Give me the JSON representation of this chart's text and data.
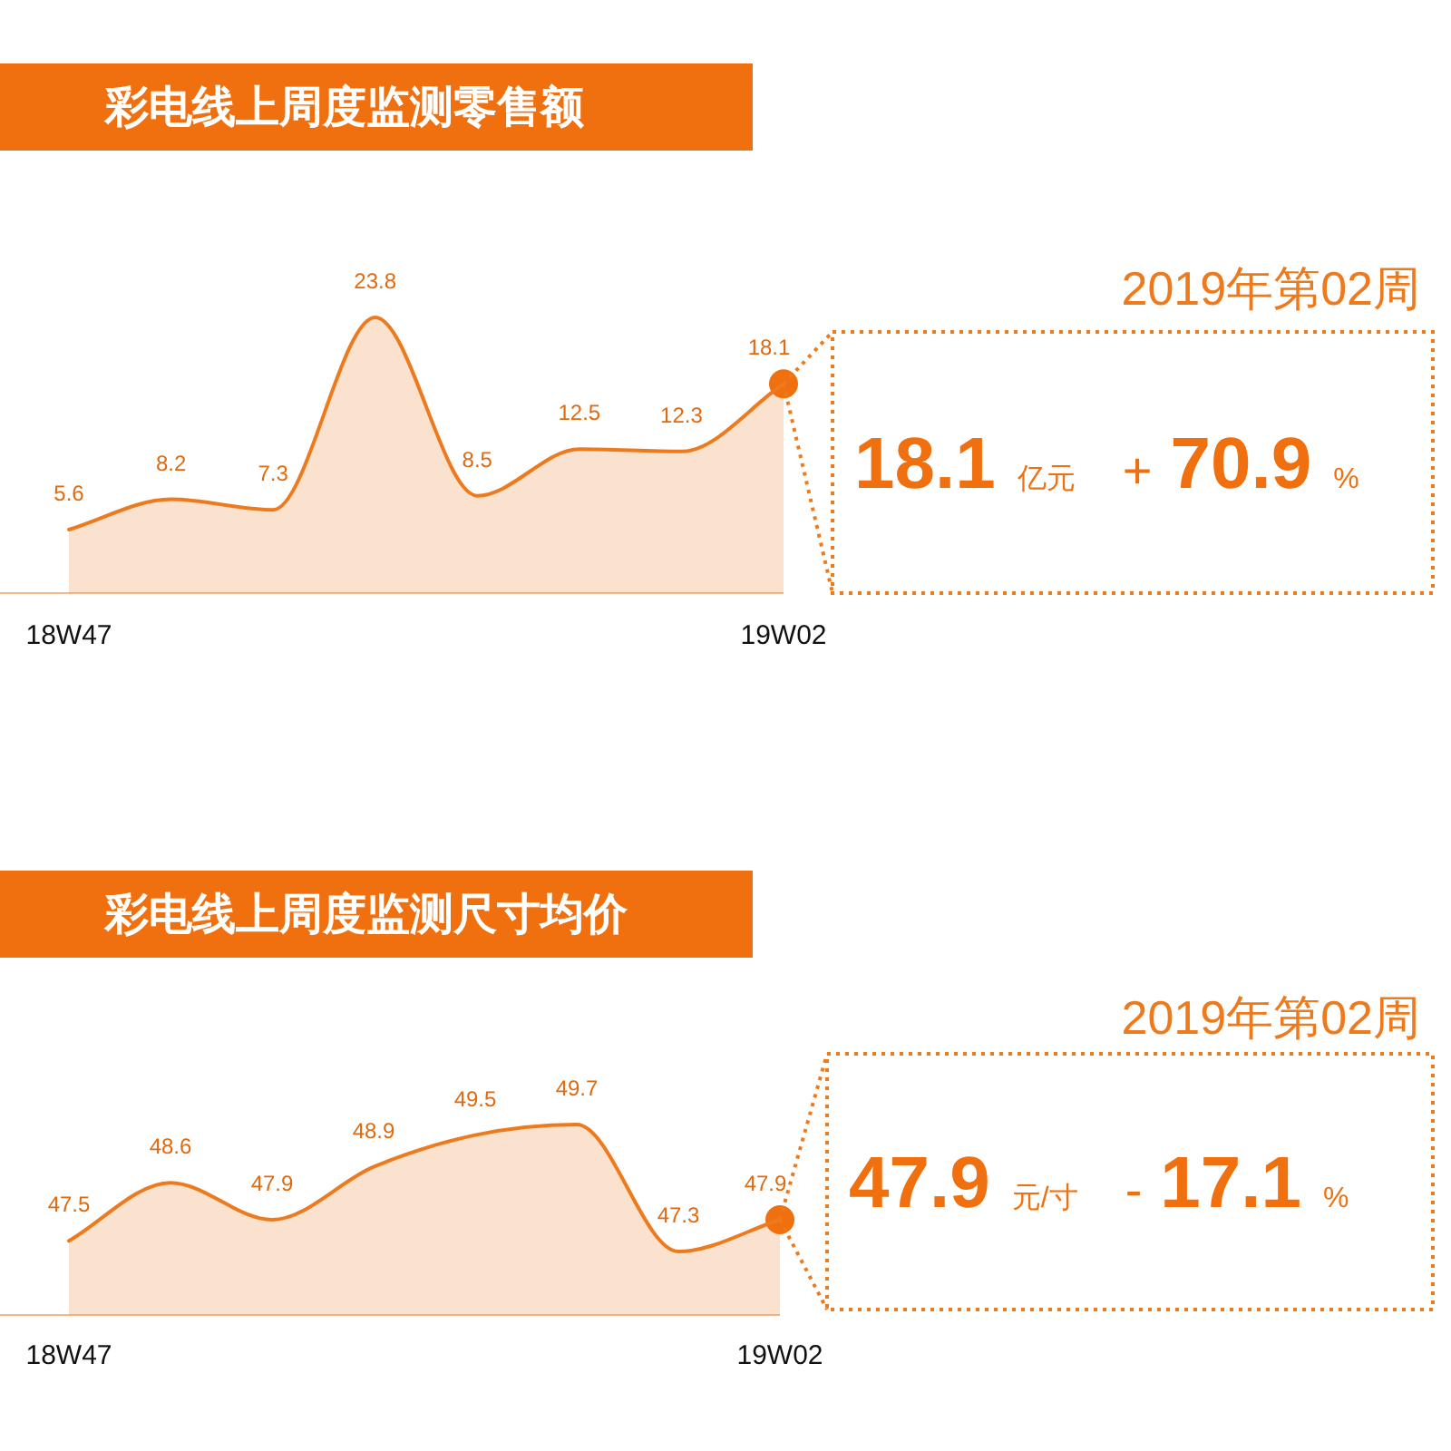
{
  "chart_data": [
    {
      "type": "line",
      "title": "彩电线上周度监测零售额",
      "categories": [
        "18W47",
        null,
        null,
        null,
        null,
        null,
        null,
        "19W02"
      ],
      "series": [
        {
          "type": "area",
          "color": "#ee7a1e",
          "values": [
            5.6,
            8.2,
            7.3,
            23.8,
            8.5,
            12.5,
            12.3,
            18.1
          ],
          "value_labels": [
            "5.6",
            "8.2",
            "7.3",
            "23.8",
            "8.5",
            "12.5",
            "12.3",
            null
          ]
        },
        {
          "type": "scatter",
          "marker": "circle",
          "color": "#f07010",
          "x": [
            "19W02"
          ],
          "values": [
            18.1
          ],
          "value_labels": [
            "18.1"
          ]
        }
      ]
    },
    {
      "type": "other",
      "title": "2019年第02周",
      "annotations": [
        "18.1",
        "亿元",
        "+",
        "70.9",
        "%"
      ]
    },
    {
      "type": "line",
      "title": "彩电线上周度监测尺寸均价",
      "categories": [
        "18W47",
        null,
        null,
        null,
        null,
        null,
        null,
        "19W02"
      ],
      "series": [
        {
          "type": "area",
          "color": "#ee7a1e",
          "values": [
            47.5,
            48.6,
            47.9,
            48.9,
            49.5,
            49.7,
            47.3,
            47.9
          ],
          "value_labels": [
            "47.5",
            "48.6",
            "47.9",
            "48.9",
            "49.5",
            "49.7",
            "47.3",
            null
          ]
        },
        {
          "type": "scatter",
          "marker": "circle",
          "color": "#f07010",
          "x": [
            "19W02"
          ],
          "values": [
            47.9
          ],
          "value_labels": [
            "47.9"
          ]
        }
      ]
    },
    {
      "type": "other",
      "title": "2019年第02周",
      "annotations": [
        "47.9",
        "元/寸",
        "-",
        "17.1",
        "%"
      ]
    }
  ]
}
